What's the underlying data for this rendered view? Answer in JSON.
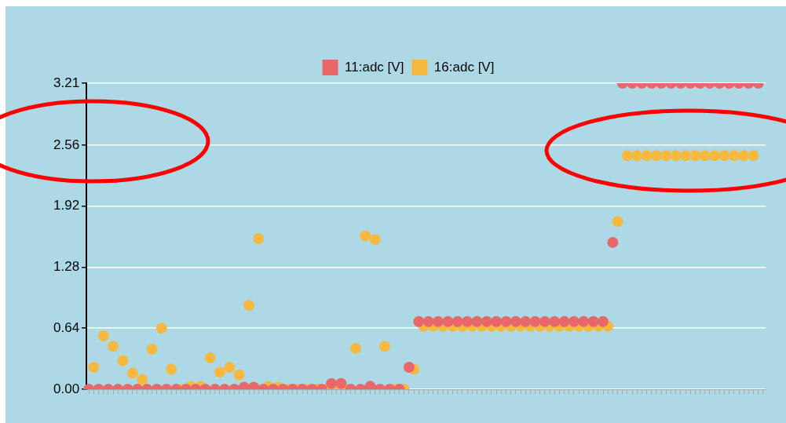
{
  "chart_data": {
    "type": "scatter",
    "legend": "top",
    "grid": "y",
    "tick_labels": "y",
    "marker": "circle",
    "categories": [
      null,
      null,
      null,
      null,
      null,
      null,
      null,
      null,
      null,
      null,
      null,
      null,
      null,
      null,
      null,
      null,
      null,
      null,
      null,
      null,
      null,
      null,
      null,
      null,
      null,
      null,
      null,
      null,
      null,
      null,
      null,
      null,
      null,
      null,
      null,
      null,
      null,
      null,
      null,
      null,
      null,
      null,
      null,
      null,
      null,
      null,
      null,
      null,
      null,
      null,
      null,
      null,
      null,
      null,
      null,
      null,
      null,
      null,
      null,
      null,
      null,
      null,
      null,
      null,
      null,
      null,
      null,
      null,
      null,
      null,
      null,
      null,
      null,
      null,
      null,
      null,
      null,
      null,
      null,
      null,
      null,
      null,
      null,
      null,
      null,
      null,
      null,
      null,
      null,
      null,
      null,
      null,
      null,
      null,
      null,
      null,
      null,
      null,
      null,
      null,
      null,
      null,
      null,
      null,
      null,
      null,
      null,
      null,
      null,
      null,
      null,
      null,
      null,
      null,
      null,
      null,
      null,
      null,
      null,
      null,
      null,
      null,
      null,
      null,
      null,
      null,
      null,
      null,
      null,
      null,
      null,
      null,
      null,
      null,
      null,
      null,
      null,
      null,
      null,
      null
    ],
    "ylim": [
      0,
      3.21
    ],
    "yticks": [
      {
        "value": 0,
        "label": "0.00"
      },
      0.64,
      1.28,
      1.92,
      2.56,
      3.21
    ],
    "series": [
      {
        "name": "11:adc [V]",
        "color": "#e8686a",
        "values": [
          0,
          null,
          0,
          null,
          0,
          null,
          0,
          null,
          0,
          null,
          0,
          null,
          0,
          null,
          0,
          null,
          0,
          null,
          0,
          null,
          0,
          null,
          0,
          null,
          0,
          null,
          0,
          null,
          0,
          null,
          0,
          null,
          0.02,
          null,
          0.02,
          null,
          0,
          null,
          0,
          null,
          0,
          null,
          0,
          null,
          0,
          null,
          0,
          null,
          0,
          null,
          0.06,
          null,
          0.06,
          null,
          0,
          null,
          0,
          null,
          0.03,
          null,
          0,
          null,
          0,
          null,
          0,
          null,
          0.23,
          null,
          0.71,
          null,
          0.71,
          null,
          0.71,
          null,
          0.71,
          null,
          0.71,
          null,
          0.71,
          null,
          0.71,
          null,
          0.71,
          null,
          0.71,
          null,
          0.71,
          null,
          0.71,
          null,
          0.71,
          null,
          0.71,
          null,
          0.71,
          null,
          0.71,
          null,
          0.71,
          null,
          0.71,
          null,
          0.71,
          null,
          0.71,
          null,
          0.71,
          null,
          1.54,
          null,
          3.21,
          null,
          3.21,
          null,
          3.21,
          null,
          3.21,
          null,
          3.21,
          null,
          3.21,
          null,
          3.21,
          null,
          3.21,
          null,
          3.21,
          null,
          3.21,
          null,
          3.21,
          null,
          3.21,
          null,
          3.21,
          null,
          3.21,
          null,
          3.21,
          null
        ]
      },
      {
        "name": "16:adc [V]",
        "color": "#f5b942",
        "values": [
          null,
          0.23,
          null,
          0.56,
          null,
          0.45,
          null,
          0.3,
          null,
          0.17,
          null,
          0.1,
          null,
          0.42,
          null,
          0.64,
          null,
          0.21,
          null,
          0,
          null,
          0.03,
          null,
          0.03,
          null,
          0.33,
          null,
          0.18,
          null,
          0.23,
          null,
          0.15,
          null,
          0.88,
          null,
          1.58,
          null,
          0.03,
          null,
          0.02,
          null,
          0,
          null,
          0,
          null,
          0,
          null,
          0,
          null,
          0,
          null,
          0,
          null,
          0,
          null,
          0.43,
          null,
          1.61,
          null,
          1.57,
          null,
          0.45,
          null,
          0,
          null,
          0,
          null,
          0.21,
          null,
          0.66,
          null,
          0.66,
          null,
          0.66,
          null,
          0.66,
          null,
          0.66,
          null,
          0.66,
          null,
          0.66,
          null,
          0.66,
          null,
          0.66,
          null,
          0.66,
          null,
          0.66,
          null,
          0.66,
          null,
          0.66,
          null,
          0.66,
          null,
          0.66,
          null,
          0.66,
          null,
          0.66,
          null,
          0.66,
          null,
          0.66,
          null,
          0.66,
          null,
          1.76,
          null,
          2.45,
          null,
          2.45,
          null,
          2.45,
          null,
          2.45,
          null,
          2.45,
          null,
          2.45,
          null,
          2.45,
          null,
          2.45,
          null,
          2.45,
          null,
          2.45,
          null,
          2.45,
          null,
          2.45,
          null,
          2.45,
          null,
          2.45,
          null,
          null
        ]
      }
    ]
  }
}
